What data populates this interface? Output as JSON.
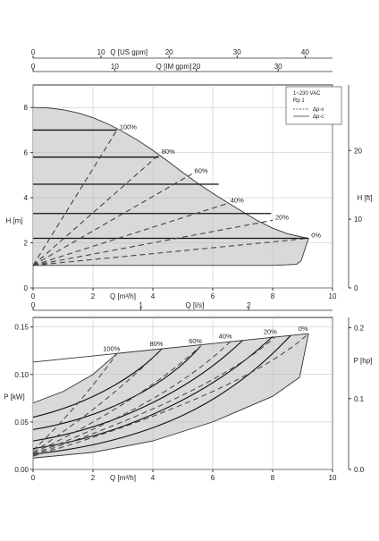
{
  "chart_data": [
    {
      "type": "line",
      "name": "head-chart",
      "xlabel": "Q [m³/h]",
      "ylabel_left": "H [m]",
      "ylabel_right": "H [ft]",
      "top_axis_1": {
        "label": "Q [US gpm]",
        "ticks": [
          0,
          10,
          20,
          30,
          40
        ],
        "ratio": 4.403
      },
      "top_axis_2": {
        "label": "Q [IM gpm]",
        "ticks": [
          0,
          10,
          20,
          30
        ],
        "ratio": 3.666
      },
      "xlim": [
        0,
        10
      ],
      "ylim": [
        0,
        9
      ],
      "right_ticks": [
        0,
        10,
        20
      ],
      "right_ratio": 3.281,
      "x_ticks": [
        0,
        2,
        4,
        6,
        8,
        10
      ],
      "y_ticks": [
        0,
        2,
        4,
        6,
        8
      ],
      "legend": {
        "lines": [
          "1~230 VAC",
          "Rp 1"
        ],
        "entries": [
          {
            "label": "Δp-v",
            "style": "dashed"
          },
          {
            "label": "Δp-c",
            "style": "solid"
          }
        ]
      },
      "max_curve": {
        "x": [
          0,
          0.5,
          1,
          1.5,
          2,
          2.5,
          3,
          3.5,
          4,
          4.5,
          5,
          5.5,
          6,
          6.5,
          7,
          7.5,
          8,
          8.5,
          9,
          9.2
        ],
        "y": [
          8.0,
          7.98,
          7.9,
          7.76,
          7.55,
          7.27,
          6.93,
          6.54,
          6.1,
          5.62,
          5.12,
          4.64,
          4.2,
          3.78,
          3.38,
          2.98,
          2.65,
          2.4,
          2.25,
          2.2
        ]
      },
      "min_curve": {
        "x": [
          0,
          2,
          4,
          6,
          8,
          8.8,
          8.95,
          9.2
        ],
        "y": [
          1.0,
          1.0,
          1.0,
          1.0,
          1.0,
          1.05,
          1.2,
          2.2
        ]
      },
      "dp_c_curves": [
        {
          "label": "",
          "x": [
            0,
            2.8
          ],
          "y": [
            7.0,
            7.0
          ]
        },
        {
          "label": "",
          "x": [
            0,
            4.2
          ],
          "y": [
            5.8,
            5.8
          ]
        },
        {
          "label": "",
          "x": [
            0,
            6.2
          ],
          "y": [
            4.6,
            4.6
          ]
        },
        {
          "label": "",
          "x": [
            0,
            7.95
          ],
          "y": [
            3.3,
            3.3
          ]
        },
        {
          "label": "",
          "x": [
            0,
            9.2
          ],
          "y": [
            2.2,
            2.2
          ]
        }
      ],
      "dp_v_curves": [
        {
          "label": "100%",
          "x": [
            0,
            2.8
          ],
          "y": [
            1.0,
            7.0
          ]
        },
        {
          "label": "80%",
          "x": [
            0,
            4.2
          ],
          "y": [
            1.0,
            5.9
          ]
        },
        {
          "label": "60%",
          "x": [
            0,
            5.3
          ],
          "y": [
            1.0,
            5.05
          ]
        },
        {
          "label": "40%",
          "x": [
            0,
            6.5
          ],
          "y": [
            1.0,
            3.75
          ]
        },
        {
          "label": "20%",
          "x": [
            0,
            8.0
          ],
          "y": [
            1.0,
            3.0
          ]
        },
        {
          "label": "0%",
          "x": [
            0,
            9.2
          ],
          "y": [
            1.0,
            2.2
          ]
        }
      ]
    },
    {
      "type": "line",
      "name": "power-chart",
      "xlabel": "Q [m³/h]",
      "ylabel_left": "P [kW]",
      "ylabel_right": "P [hp]",
      "top_axis": {
        "label": "Q [l/s]",
        "ticks": [
          0,
          1,
          2
        ],
        "ratio": 0.2778
      },
      "xlim": [
        0,
        10
      ],
      "ylim": [
        0,
        0.16
      ],
      "x_ticks": [
        0,
        2,
        4,
        6,
        8,
        10
      ],
      "y_ticks": [
        "0.00",
        "0.05",
        "0.10",
        "0.15"
      ],
      "right_ticks": [
        "0.0",
        "0.1",
        "0.2"
      ],
      "right_ratio": 1.341,
      "max_line": {
        "x": [
          0,
          9.2
        ],
        "y": [
          0.113,
          0.143
        ]
      },
      "region_upper": {
        "x": [
          0,
          1,
          2,
          2.8
        ],
        "y": [
          0.07,
          0.082,
          0.1,
          0.122
        ]
      },
      "region_lower": {
        "x": [
          0,
          2,
          4,
          6,
          8,
          8.9,
          9.2
        ],
        "y": [
          0.012,
          0.018,
          0.03,
          0.05,
          0.077,
          0.097,
          0.143
        ]
      },
      "dp_c_curves": [
        {
          "x": [
            0,
            2,
            3.5,
            4.3
          ],
          "y": [
            0.055,
            0.07,
            0.1,
            0.127
          ]
        },
        {
          "x": [
            0,
            2.5,
            4.5,
            5.6
          ],
          "y": [
            0.042,
            0.055,
            0.09,
            0.13
          ]
        },
        {
          "x": [
            0,
            3,
            5.5,
            7.0
          ],
          "y": [
            0.03,
            0.045,
            0.09,
            0.136
          ]
        },
        {
          "x": [
            0,
            3,
            6,
            8.0
          ],
          "y": [
            0.022,
            0.035,
            0.08,
            0.14
          ]
        },
        {
          "x": [
            0,
            4,
            6.5,
            8.6
          ],
          "y": [
            0.016,
            0.03,
            0.07,
            0.141
          ]
        }
      ],
      "dp_v_curves": [
        {
          "label": "100%",
          "x": [
            0,
            1.5,
            2.8
          ],
          "y": [
            0.02,
            0.065,
            0.122
          ]
        },
        {
          "label": "80%",
          "x": [
            0,
            2.5,
            4.3
          ],
          "y": [
            0.018,
            0.07,
            0.127
          ]
        },
        {
          "label": "60%",
          "x": [
            0,
            3.5,
            5.6
          ],
          "y": [
            0.017,
            0.07,
            0.13
          ]
        },
        {
          "label": "40%",
          "x": [
            0,
            4.5,
            6.6
          ],
          "y": [
            0.016,
            0.07,
            0.135
          ]
        },
        {
          "label": "20%",
          "x": [
            0,
            6,
            8.1
          ],
          "y": [
            0.015,
            0.08,
            0.14
          ]
        },
        {
          "label": "0%",
          "x": [
            0,
            7,
            9.2
          ],
          "y": [
            0.014,
            0.08,
            0.143
          ]
        }
      ]
    }
  ]
}
